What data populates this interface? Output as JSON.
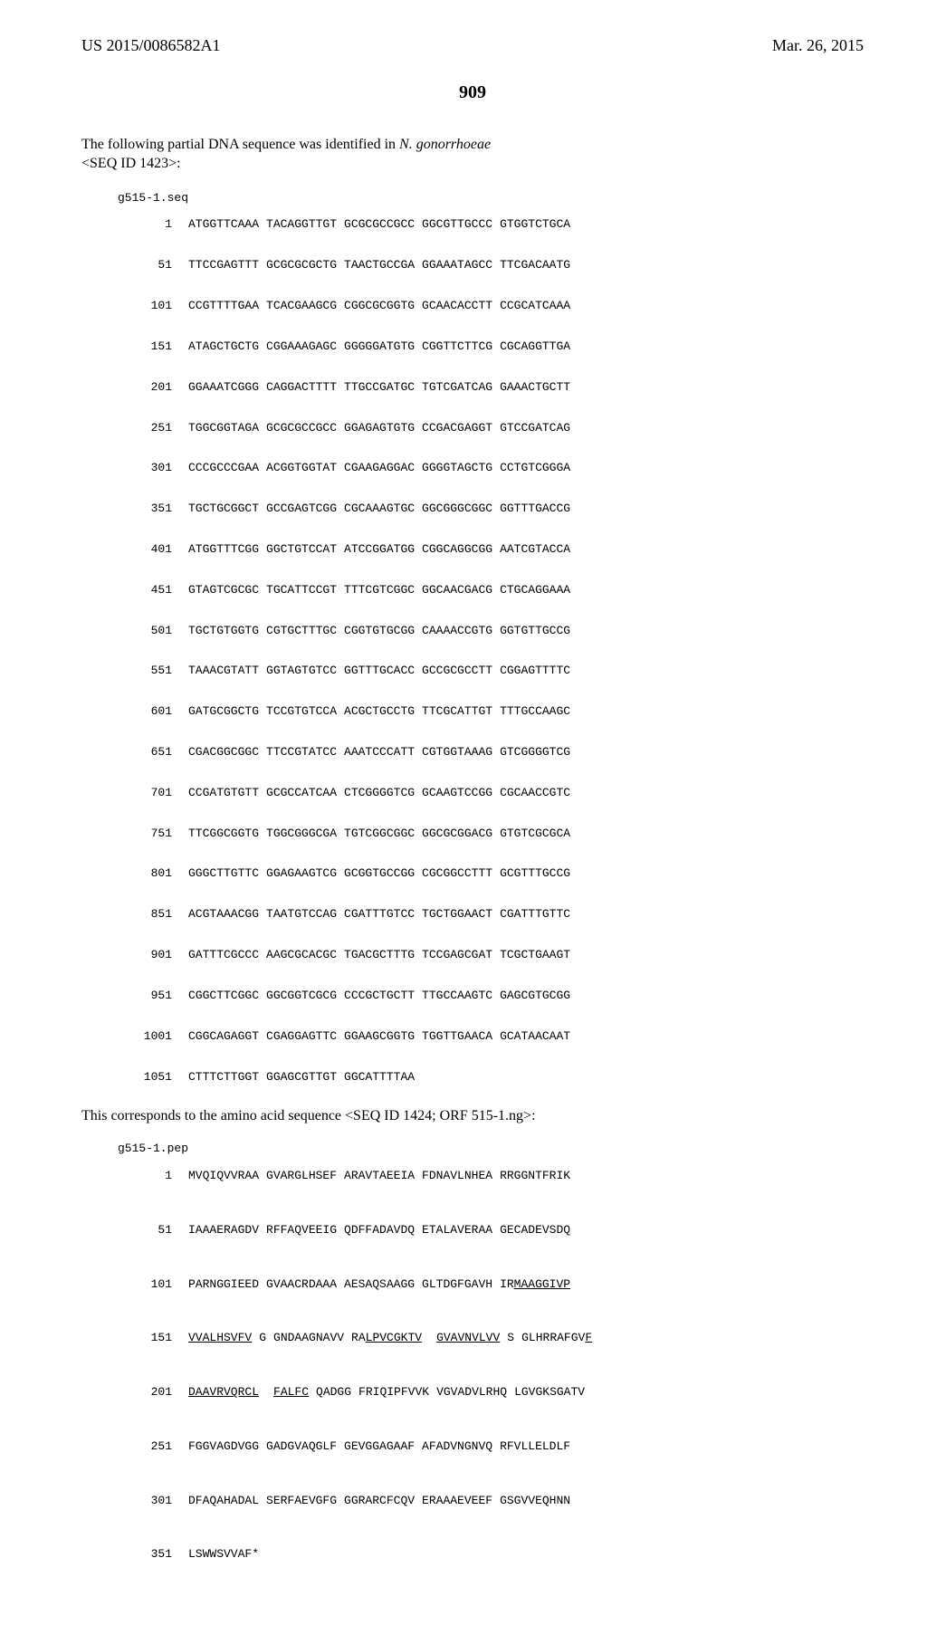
{
  "header": {
    "pub_number": "US 2015/0086582A1",
    "pub_date": "Mar. 26, 2015"
  },
  "page_number": "909",
  "intro_line1": "The following partial DNA sequence was identified in ",
  "intro_italic": "N. gonorrhoeae",
  "intro_seqid": " <SEQ ID 1423>:",
  "dna": {
    "title": "g515-1.seq",
    "rows": [
      {
        "pos": "1",
        "g": [
          "ATGGTTCAAA",
          "TACAGGTTGT",
          "GCGCGCCGCC",
          "GGCGTTGCCC",
          "GTGGTCTGCA"
        ]
      },
      {
        "pos": "51",
        "g": [
          "TTCCGAGTTT",
          "GCGCGCGCTG",
          "TAACTGCCGA",
          "GGAAATAGCC",
          "TTCGACAATG"
        ]
      },
      {
        "pos": "101",
        "g": [
          "CCGTTTTGAA",
          "TCACGAAGCG",
          "CGGCGCGGTG",
          "GCAACACCTT",
          "CCGCATCAAA"
        ]
      },
      {
        "pos": "151",
        "g": [
          "ATAGCTGCTG",
          "CGGAAAGAGC",
          "GGGGGATGTG",
          "CGGTTCTTCG",
          "CGCAGGTTGA"
        ]
      },
      {
        "pos": "201",
        "g": [
          "GGAAATCGGG",
          "CAGGACTTTT",
          "TTGCCGATGC",
          "TGTCGATCAG",
          "GAAACTGCTT"
        ]
      },
      {
        "pos": "251",
        "g": [
          "TGGCGGTAGA",
          "GCGCGCCGCC",
          "GGAGAGTGTG",
          "CCGACGAGGT",
          "GTCCGATCAG"
        ]
      },
      {
        "pos": "301",
        "g": [
          "CCCGCCCGAA",
          "ACGGTGGTAT",
          "CGAAGAGGAC",
          "GGGGTAGCTG",
          "CCTGTCGGGA"
        ]
      },
      {
        "pos": "351",
        "g": [
          "TGCTGCGGCT",
          "GCCGAGTCGG",
          "CGCAAAGTGC",
          "GGCGGGCGGC",
          "GGTTTGACCG"
        ]
      },
      {
        "pos": "401",
        "g": [
          "ATGGTTTCGG",
          "GGCTGTCCAT",
          "ATCCGGATGG",
          "CGGCAGGCGG",
          "AATCGTACCA"
        ]
      },
      {
        "pos": "451",
        "g": [
          "GTAGTCGCGC",
          "TGCATTCCGT",
          "TTTCGTCGGC",
          "GGCAACGACG",
          "CTGCAGGAAA"
        ]
      },
      {
        "pos": "501",
        "g": [
          "TGCTGTGGTG",
          "CGTGCTTTGC",
          "CGGTGTGCGG",
          "CAAAACCGTG",
          "GGTGTTGCCG"
        ]
      },
      {
        "pos": "551",
        "g": [
          "TAAACGTATT",
          "GGTAGTGTCC",
          "GGTTTGCACC",
          "GCCGCGCCTT",
          "CGGAGTTTTC"
        ]
      },
      {
        "pos": "601",
        "g": [
          "GATGCGGCTG",
          "TCCGTGTCCA",
          "ACGCTGCCTG",
          "TTCGCATTGT",
          "TTTGCCAAGC"
        ]
      },
      {
        "pos": "651",
        "g": [
          "CGACGGCGGC",
          "TTCCGTATCC",
          "AAATCCCATT",
          "CGTGGTAAAG",
          "GTCGGGGTCG"
        ]
      },
      {
        "pos": "701",
        "g": [
          "CCGATGTGTT",
          "GCGCCATCAA",
          "CTCGGGGTCG",
          "GCAAGTCCGG",
          "CGCAACCGTC"
        ]
      },
      {
        "pos": "751",
        "g": [
          "TTCGGCGGTG",
          "TGGCGGGCGA",
          "TGTCGGCGGC",
          "GGCGCGGACG",
          "GTGTCGCGCA"
        ]
      },
      {
        "pos": "801",
        "g": [
          "GGGCTTGTTC",
          "GGAGAAGTCG",
          "GCGGTGCCGG",
          "CGCGGCCTTT",
          "GCGTTTGCCG"
        ]
      },
      {
        "pos": "851",
        "g": [
          "ACGTAAACGG",
          "TAATGTCCAG",
          "CGATTTGTCC",
          "TGCTGGAACT",
          "CGATTTGTTC"
        ]
      },
      {
        "pos": "901",
        "g": [
          "GATTTCGCCC",
          "AAGCGCACGC",
          "TGACGCTTTG",
          "TCCGAGCGAT",
          "TCGCTGAAGT"
        ]
      },
      {
        "pos": "951",
        "g": [
          "CGGCTTCGGC",
          "GGCGGTCGCG",
          "CCCGCTGCTT",
          "TTGCCAAGTC",
          "GAGCGTGCGG"
        ]
      },
      {
        "pos": "1001",
        "g": [
          "CGGCAGAGGT",
          "CGAGGAGTTC",
          "GGAAGCGGTG",
          "TGGTTGAACA",
          "GCATAACAAT"
        ]
      },
      {
        "pos": "1051",
        "g": [
          "CTTTCTTGGT",
          "GGAGCGTTGT",
          "GGCATTTTAA"
        ]
      }
    ]
  },
  "subtext_line1": "This corresponds to the amino acid sequence <SEQ ID 1424; ORF 515-1.ng>:",
  "aa": {
    "title": "g515-1.pep",
    "rows": [
      {
        "pos": "1",
        "segs": [
          [
            "MVQIQVVRAA",
            false
          ],
          [
            "GVARGLHSEF",
            false
          ],
          [
            "ARAVTAEEIA",
            false
          ],
          [
            "FDNAVLNHEA",
            false
          ],
          [
            "RRGGNTFRIK",
            false
          ]
        ]
      },
      {
        "pos": "51",
        "segs": [
          [
            "IAAAERAGDV",
            false
          ],
          [
            "RFFAQVEEIG",
            false
          ],
          [
            "QDFFADAVDQ",
            false
          ],
          [
            "ETALAVERAA",
            false
          ],
          [
            "GECADEVSDQ",
            false
          ]
        ]
      },
      {
        "pos": "101",
        "segs": [
          [
            "PARNGGIEED",
            false
          ],
          [
            "GVAACRDAAA",
            false
          ],
          [
            "AESAQSAAGG",
            false
          ],
          [
            "GLTDGFGAVH",
            false
          ],
          [
            "IR",
            false
          ],
          [
            "MAAGGIVP",
            true
          ]
        ]
      },
      {
        "pos": "151",
        "segs": [
          [
            "VVALHSVFV",
            true
          ],
          [
            "G",
            false
          ],
          [
            "GNDAAGNAVV",
            false
          ],
          [
            "RA",
            false
          ],
          [
            "LPVCGKTV",
            true
          ],
          [
            "GVAVNVLVV",
            true
          ],
          [
            "S",
            false
          ],
          [
            "GLHRRAFGV",
            false
          ],
          [
            "F",
            true
          ]
        ]
      },
      {
        "pos": "201",
        "segs": [
          [
            "DAAVRVQRCL",
            true
          ],
          [
            "FALFC",
            true
          ],
          [
            "QADGG",
            false
          ],
          [
            "FRIQIPFVVK",
            false
          ],
          [
            "VGVADVLRHQ",
            false
          ],
          [
            "LGVGKSGATV",
            false
          ]
        ]
      },
      {
        "pos": "251",
        "segs": [
          [
            "FGGVAGDVGG",
            false
          ],
          [
            "GADGVAQGLF",
            false
          ],
          [
            "GEVGGAGAAF",
            false
          ],
          [
            "AFADVNGNVQ",
            false
          ],
          [
            "RFVLLELDLF",
            false
          ]
        ]
      },
      {
        "pos": "301",
        "segs": [
          [
            "DFAQAHADAL",
            false
          ],
          [
            "SERFAEVGFG",
            false
          ],
          [
            "GGRARCFCQV",
            false
          ],
          [
            "ERAAAEVEEF",
            false
          ],
          [
            "GSGVVEQHNN",
            false
          ]
        ]
      },
      {
        "pos": "351",
        "segs": [
          [
            "LSWWSVVAF*",
            false
          ]
        ]
      }
    ]
  }
}
